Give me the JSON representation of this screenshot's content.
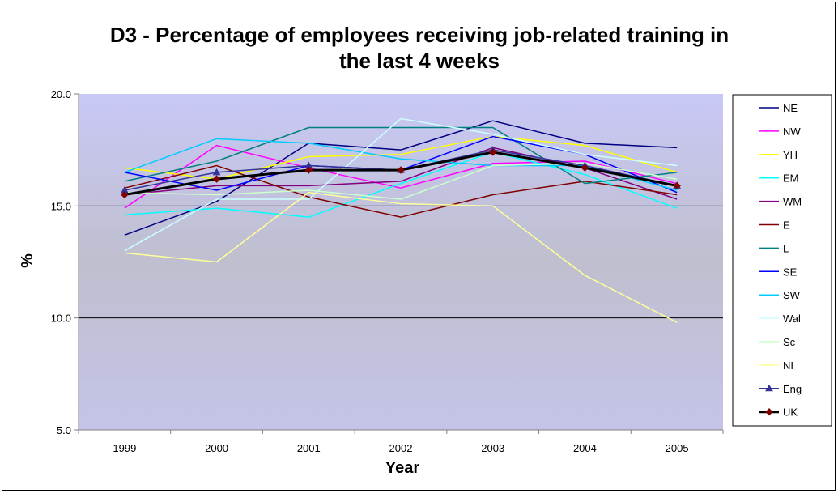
{
  "chart_data": {
    "type": "line",
    "title_line1": "D3 - Percentage of employees receiving job-related training in",
    "title_line2": "the last 4 weeks",
    "xlabel": "Year",
    "ylabel": "%",
    "categories": [
      "1999",
      "2000",
      "2001",
      "2002",
      "2003",
      "2004",
      "2005"
    ],
    "ylim": [
      5,
      20
    ],
    "yticks": [
      5,
      10,
      15,
      20
    ],
    "ytick_labels": [
      "5.0",
      "10.0",
      "15.0",
      "20.0"
    ],
    "legend_position": "right",
    "plot_background": "gradient lavender to grey",
    "series": [
      {
        "name": "NE",
        "color": "#000080",
        "values": [
          13.7,
          15.2,
          17.8,
          17.5,
          18.8,
          17.8,
          17.6
        ]
      },
      {
        "name": "NW",
        "color": "#ff00ff",
        "values": [
          14.9,
          17.7,
          16.7,
          15.8,
          16.9,
          17.0,
          16.0
        ]
      },
      {
        "name": "YH",
        "color": "#ffff00",
        "values": [
          16.7,
          16.2,
          17.2,
          17.3,
          18.1,
          17.7,
          16.5
        ]
      },
      {
        "name": "EM",
        "color": "#00ffff",
        "values": [
          14.6,
          14.9,
          14.5,
          16.0,
          17.4,
          16.4,
          14.9
        ]
      },
      {
        "name": "WM",
        "color": "#800080",
        "values": [
          15.5,
          15.9,
          15.9,
          16.1,
          17.6,
          16.7,
          15.3
        ]
      },
      {
        "name": "E",
        "color": "#800000",
        "values": [
          15.8,
          16.8,
          15.4,
          14.5,
          15.5,
          16.1,
          15.5
        ]
      },
      {
        "name": "L",
        "color": "#008080",
        "values": [
          16.1,
          17.0,
          18.5,
          18.5,
          18.5,
          16.0,
          16.5
        ]
      },
      {
        "name": "SE",
        "color": "#0000ff",
        "values": [
          16.5,
          15.7,
          16.8,
          16.6,
          18.1,
          17.3,
          15.6
        ]
      },
      {
        "name": "SW",
        "color": "#00ccff",
        "values": [
          16.5,
          18.0,
          17.8,
          17.1,
          16.8,
          16.8,
          15.7
        ]
      },
      {
        "name": "Wal",
        "color": "#ccffff",
        "values": [
          13.0,
          15.3,
          15.3,
          18.9,
          18.2,
          17.3,
          16.8
        ]
      },
      {
        "name": "Sc",
        "color": "#ccffcc",
        "values": [
          15.6,
          15.5,
          15.7,
          15.3,
          16.8,
          16.9,
          16.2
        ]
      },
      {
        "name": "NI",
        "color": "#ffff99",
        "values": [
          12.9,
          12.5,
          15.6,
          15.1,
          15.0,
          11.9,
          9.8
        ]
      },
      {
        "name": "Eng",
        "color": "#333399",
        "marker": "triangle",
        "values": [
          15.7,
          16.5,
          16.8,
          16.6,
          17.5,
          16.8,
          15.9
        ]
      },
      {
        "name": "UK",
        "color": "#000000",
        "marker": "diamond",
        "thick": true,
        "values": [
          15.5,
          16.2,
          16.6,
          16.6,
          17.4,
          16.7,
          15.9
        ]
      }
    ]
  }
}
